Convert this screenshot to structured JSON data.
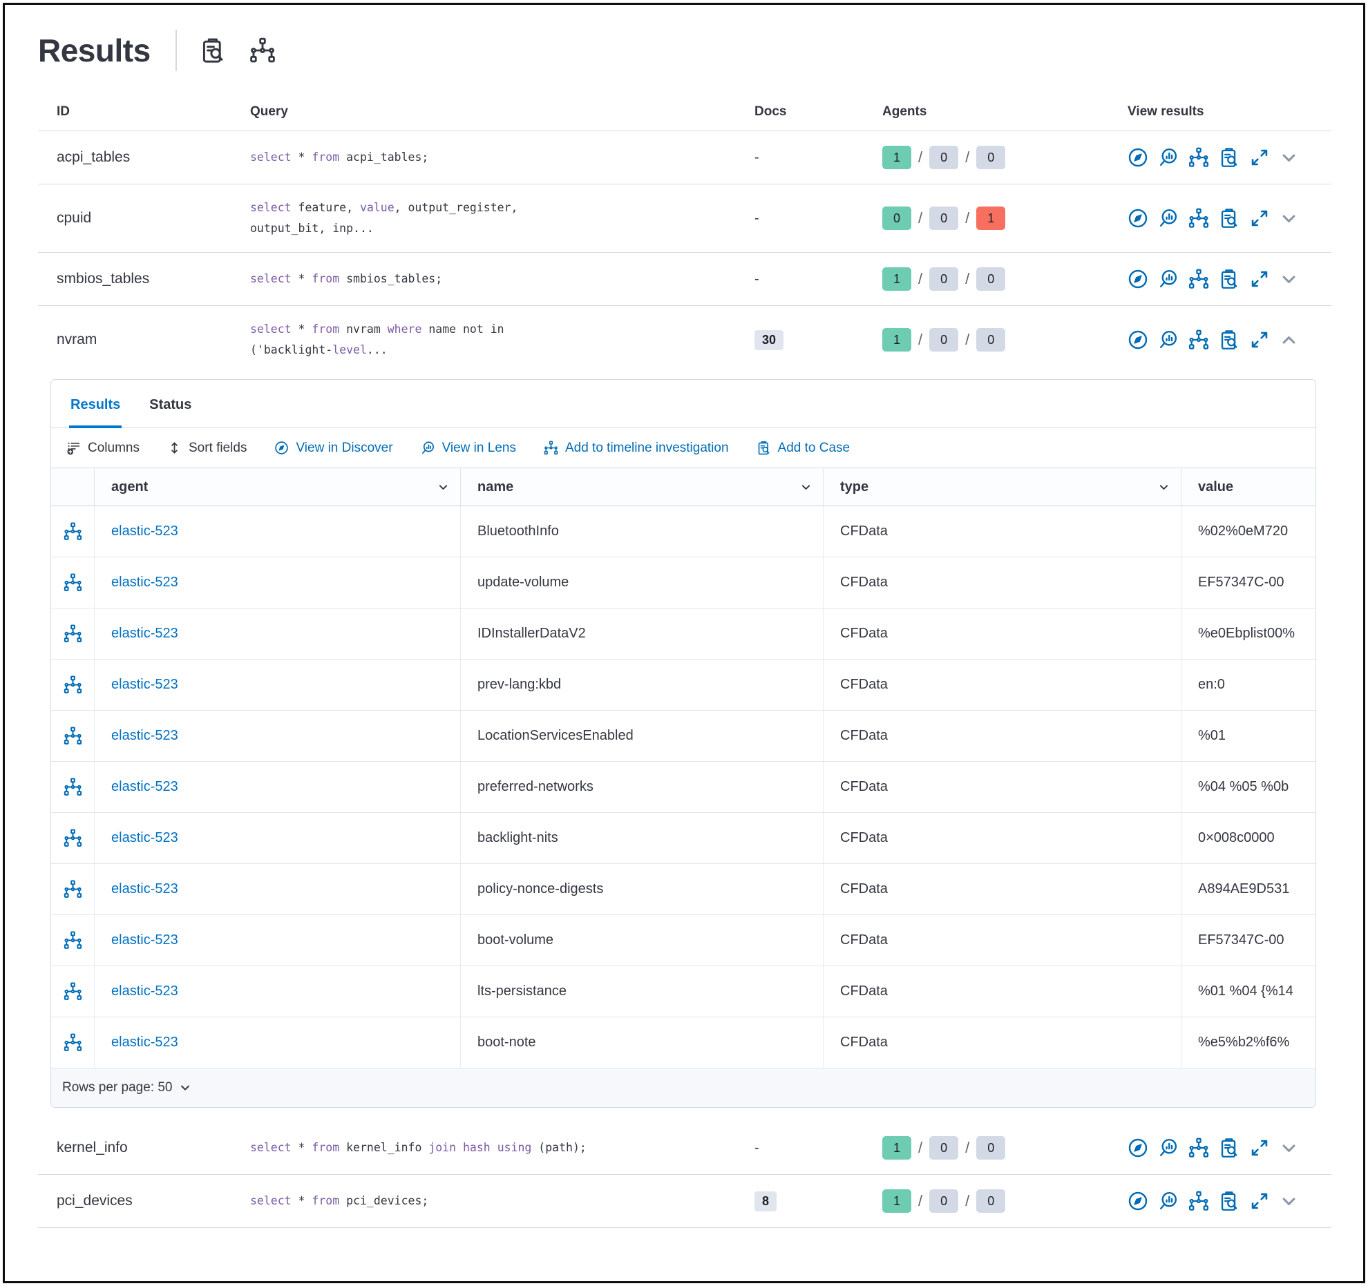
{
  "colors": {
    "primary": "#006bb4",
    "link": "#0071c2",
    "tab": "#0077cc",
    "keyword": "#7c5aa5",
    "green": "#6dccb1",
    "gray": "#d3dae6",
    "red": "#f7705f",
    "docsbg": "#e0e5ee",
    "text": "#343741",
    "border": "#d3dae6",
    "chev": "#8d97a6",
    "footer": "#f6f8fc"
  },
  "header": {
    "title": "Results"
  },
  "table": {
    "columns": [
      "ID",
      "Query",
      "Docs",
      "Agents",
      "View results"
    ],
    "rows": [
      {
        "id": "acpi_tables",
        "docs": "-",
        "docs_badge": false,
        "agents": [
          1,
          0,
          0
        ],
        "expanded": false,
        "query_lines": [
          [
            [
              "select",
              1
            ],
            [
              " * ",
              0
            ],
            [
              "from",
              1
            ],
            [
              " acpi_tables;",
              0
            ]
          ]
        ]
      },
      {
        "id": "cpuid",
        "docs": "-",
        "docs_badge": false,
        "agents": [
          0,
          0,
          1
        ],
        "expanded": false,
        "query_lines": [
          [
            [
              "select",
              1
            ],
            [
              " feature, ",
              0
            ],
            [
              "value",
              1
            ],
            [
              ", output_register,",
              0
            ]
          ],
          [
            [
              "output_bit, inp...",
              0
            ]
          ]
        ]
      },
      {
        "id": "smbios_tables",
        "docs": "-",
        "docs_badge": false,
        "agents": [
          1,
          0,
          0
        ],
        "expanded": false,
        "query_lines": [
          [
            [
              "select",
              1
            ],
            [
              " * ",
              0
            ],
            [
              "from",
              1
            ],
            [
              " smbios_tables;",
              0
            ]
          ]
        ]
      },
      {
        "id": "nvram",
        "docs": "30",
        "docs_badge": true,
        "agents": [
          1,
          0,
          0
        ],
        "expanded": true,
        "query_lines": [
          [
            [
              "select",
              1
            ],
            [
              " * ",
              0
            ],
            [
              "from",
              1
            ],
            [
              " nvram ",
              0
            ],
            [
              "where",
              1
            ],
            [
              " name not in",
              0
            ]
          ],
          [
            [
              "('backlight-",
              0
            ],
            [
              "level",
              1
            ],
            [
              "...",
              0
            ]
          ]
        ]
      },
      {
        "id": "kernel_info",
        "docs": "-",
        "docs_badge": false,
        "agents": [
          1,
          0,
          0
        ],
        "expanded": false,
        "query_lines": [
          [
            [
              "select",
              1
            ],
            [
              " * ",
              0
            ],
            [
              "from",
              1
            ],
            [
              " kernel_info ",
              0
            ],
            [
              "join",
              1
            ],
            [
              " ",
              0
            ],
            [
              "hash",
              1
            ],
            [
              " ",
              0
            ],
            [
              "using",
              1
            ],
            [
              " (path);",
              0
            ]
          ]
        ]
      },
      {
        "id": "pci_devices",
        "docs": "8",
        "docs_badge": true,
        "agents": [
          1,
          0,
          0
        ],
        "expanded": false,
        "query_lines": [
          [
            [
              "select",
              1
            ],
            [
              " * ",
              0
            ],
            [
              "from",
              1
            ],
            [
              " pci_devices;",
              0
            ]
          ]
        ]
      }
    ]
  },
  "panel": {
    "tabs": [
      {
        "label": "Results",
        "active": true,
        "name": "tab-results"
      },
      {
        "label": "Status",
        "active": false,
        "name": "tab-status"
      }
    ],
    "toolbar": [
      {
        "label": "Columns",
        "icon": "columns",
        "tone": "dark",
        "name": "columns-button",
        "icon_name": "columns-icon"
      },
      {
        "label": "Sort fields",
        "icon": "sort",
        "tone": "dark",
        "name": "sort-fields-button",
        "icon_name": "sort-icon"
      },
      {
        "label": "View in Discover",
        "icon": "discover",
        "tone": "blue",
        "name": "view-in-discover-button",
        "icon_name": "discover-compass-icon"
      },
      {
        "label": "View in Lens",
        "icon": "lens",
        "tone": "blue",
        "name": "view-in-lens-button",
        "icon_name": "lens-icon"
      },
      {
        "label": "Add to timeline investigation",
        "icon": "tree",
        "tone": "blue",
        "name": "add-to-timeline-button",
        "icon_name": "node-tree-icon"
      },
      {
        "label": "Add to Case",
        "icon": "case",
        "tone": "blue",
        "name": "add-to-case-button",
        "icon_name": "clipboard-search-icon"
      }
    ],
    "grid": {
      "columns": [
        {
          "label": "agent",
          "sortable": true
        },
        {
          "label": "name",
          "sortable": true
        },
        {
          "label": "type",
          "sortable": true
        },
        {
          "label": "value",
          "sortable": false
        }
      ],
      "rows": [
        {
          "agent": "elastic-523",
          "name": "BluetoothInfo",
          "type": "CFData",
          "value": "%02%0eM720"
        },
        {
          "agent": "elastic-523",
          "name": "update-volume",
          "type": "CFData",
          "value": "EF57347C-00"
        },
        {
          "agent": "elastic-523",
          "name": "IDInstallerDataV2",
          "type": "CFData",
          "value": "%e0Ebplist00%"
        },
        {
          "agent": "elastic-523",
          "name": "prev-lang:kbd",
          "type": "CFData",
          "value": "en:0"
        },
        {
          "agent": "elastic-523",
          "name": "LocationServicesEnabled",
          "type": "CFData",
          "value": "%01"
        },
        {
          "agent": "elastic-523",
          "name": "preferred-networks",
          "type": "CFData",
          "value": "%04 %05 %0b"
        },
        {
          "agent": "elastic-523",
          "name": "backlight-nits",
          "type": "CFData",
          "value": "0×008c0000"
        },
        {
          "agent": "elastic-523",
          "name": "policy-nonce-digests",
          "type": "CFData",
          "value": "A894AE9D531"
        },
        {
          "agent": "elastic-523",
          "name": "boot-volume",
          "type": "CFData",
          "value": "EF57347C-00"
        },
        {
          "agent": "elastic-523",
          "name": "lts-persistance",
          "type": "CFData",
          "value": "%01 %04 {%14"
        },
        {
          "agent": "elastic-523",
          "name": "boot-note",
          "type": "CFData",
          "value": "%e5%b2%f6%"
        }
      ]
    },
    "footer": {
      "rows_per_page_label": "Rows per page: 50"
    }
  }
}
